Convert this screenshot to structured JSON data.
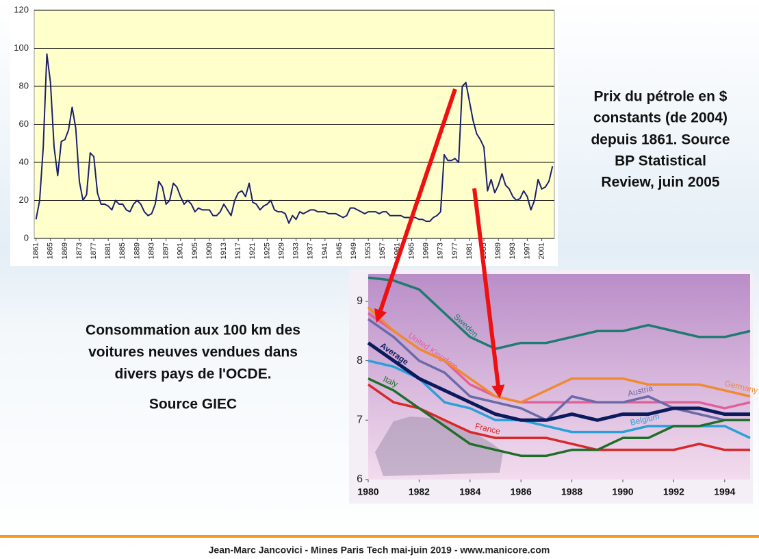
{
  "chart_data": [
    {
      "type": "line",
      "x": [
        1861,
        1862,
        1863,
        1864,
        1865,
        1866,
        1867,
        1868,
        1869,
        1870,
        1871,
        1872,
        1873,
        1874,
        1875,
        1876,
        1877,
        1878,
        1879,
        1880,
        1881,
        1882,
        1883,
        1884,
        1885,
        1886,
        1887,
        1888,
        1889,
        1890,
        1891,
        1892,
        1893,
        1894,
        1895,
        1896,
        1897,
        1898,
        1899,
        1900,
        1901,
        1902,
        1903,
        1904,
        1905,
        1906,
        1907,
        1908,
        1909,
        1910,
        1911,
        1912,
        1913,
        1914,
        1915,
        1916,
        1917,
        1918,
        1919,
        1920,
        1921,
        1922,
        1923,
        1924,
        1925,
        1926,
        1927,
        1928,
        1929,
        1930,
        1931,
        1932,
        1933,
        1934,
        1935,
        1936,
        1937,
        1938,
        1939,
        1940,
        1941,
        1942,
        1943,
        1944,
        1945,
        1946,
        1947,
        1948,
        1949,
        1950,
        1951,
        1952,
        1953,
        1954,
        1955,
        1956,
        1957,
        1958,
        1959,
        1960,
        1961,
        1962,
        1963,
        1964,
        1965,
        1966,
        1967,
        1968,
        1969,
        1970,
        1971,
        1972,
        1973,
        1974,
        1975,
        1976,
        1977,
        1978,
        1979,
        1980,
        1981,
        1982,
        1983,
        1984,
        1985,
        1986,
        1987,
        1988,
        1989,
        1990,
        1991,
        1992,
        1993,
        1994,
        1995,
        1996,
        1997,
        1998,
        1999,
        2000,
        2001,
        2002,
        2003,
        2004
      ],
      "values": [
        10,
        20,
        48,
        97,
        82,
        48,
        33,
        51,
        52,
        57,
        69,
        58,
        30,
        20,
        23,
        45,
        43,
        24,
        18,
        18,
        17,
        15,
        20,
        18,
        18,
        15,
        14,
        18,
        20,
        18,
        14,
        12,
        13,
        18,
        30,
        27,
        18,
        20,
        29,
        27,
        22,
        18,
        20,
        18,
        14,
        16,
        15,
        15,
        15,
        12,
        12,
        14,
        18,
        15,
        12,
        20,
        24,
        25,
        22,
        29,
        19,
        18,
        15,
        17,
        18,
        20,
        15,
        14,
        14,
        13,
        8,
        12,
        10,
        14,
        13,
        14,
        15,
        15,
        14,
        14,
        14,
        13,
        13,
        13,
        12,
        11,
        12,
        16,
        16,
        15,
        14,
        13,
        14,
        14,
        14,
        13,
        14,
        14,
        12,
        12,
        12,
        12,
        11,
        11,
        11,
        11,
        10,
        10,
        9,
        9,
        11,
        12,
        14,
        44,
        41,
        41,
        42,
        40,
        80,
        82,
        72,
        62,
        55,
        52,
        48,
        25,
        31,
        24,
        28,
        34,
        28,
        26,
        22,
        20,
        21,
        25,
        22,
        15,
        20,
        31,
        26,
        27,
        30,
        38
      ],
      "color": "#1a1f6e",
      "xlim": [
        1860.5,
        2004.5
      ],
      "xticks": [
        1861,
        1865,
        1869,
        1873,
        1877,
        1881,
        1885,
        1889,
        1893,
        1897,
        1901,
        1905,
        1909,
        1913,
        1917,
        1921,
        1925,
        1929,
        1933,
        1937,
        1941,
        1945,
        1949,
        1953,
        1957,
        1961,
        1965,
        1969,
        1973,
        1977,
        1981,
        1985,
        1989,
        1993,
        1997,
        2001
      ],
      "ylim": [
        0,
        120
      ],
      "yticks": [
        0,
        20,
        40,
        60,
        80,
        100,
        120
      ],
      "grid": true
    },
    {
      "type": "line",
      "x": [
        1980,
        1981,
        1982,
        1983,
        1984,
        1985,
        1986,
        1987,
        1988,
        1989,
        1990,
        1991,
        1992,
        1993,
        1994,
        1995
      ],
      "series": [
        {
          "name": "Sweden",
          "color": "#1f7a70",
          "values": [
            9.4,
            9.35,
            9.2,
            8.8,
            8.4,
            8.2,
            8.3,
            8.3,
            8.4,
            8.5,
            8.5,
            8.6,
            8.5,
            8.4,
            8.4,
            8.5
          ]
        },
        {
          "name": "United Kingdom",
          "color": "#e0609a",
          "values": [
            8.8,
            8.5,
            8.2,
            8.0,
            7.6,
            7.4,
            7.3,
            7.3,
            7.3,
            7.3,
            7.3,
            7.3,
            7.3,
            7.3,
            7.2,
            7.3
          ]
        },
        {
          "name": "Germany",
          "color": "#f08a30",
          "values": [
            8.9,
            8.5,
            8.2,
            8.0,
            7.7,
            7.4,
            7.3,
            7.5,
            7.7,
            7.7,
            7.7,
            7.6,
            7.6,
            7.6,
            7.5,
            7.4
          ]
        },
        {
          "name": "Austria",
          "color": "#6a6aa8",
          "values": [
            8.7,
            8.4,
            8.0,
            7.8,
            7.4,
            7.3,
            7.2,
            7.0,
            7.4,
            7.3,
            7.3,
            7.4,
            7.2,
            7.1,
            7.0,
            7.0
          ]
        },
        {
          "name": "Belgium",
          "color": "#28a0d8",
          "values": [
            8.0,
            7.9,
            7.7,
            7.3,
            7.2,
            7.0,
            7.0,
            6.9,
            6.8,
            6.8,
            6.8,
            6.9,
            6.9,
            6.9,
            6.9,
            6.7
          ]
        },
        {
          "name": "France",
          "color": "#d82828",
          "values": [
            7.6,
            7.3,
            7.2,
            7.0,
            6.8,
            6.7,
            6.7,
            6.7,
            6.6,
            6.5,
            6.5,
            6.5,
            6.5,
            6.6,
            6.5,
            6.5
          ]
        },
        {
          "name": "Italy",
          "color": "#1e6e2a",
          "values": [
            7.7,
            7.5,
            7.2,
            6.9,
            6.6,
            6.5,
            6.4,
            6.4,
            6.5,
            6.5,
            6.7,
            6.7,
            6.9,
            6.9,
            7.0,
            7.0
          ]
        },
        {
          "name": "Average",
          "color": "#0a1a5c",
          "values": [
            8.3,
            8.0,
            7.7,
            7.5,
            7.3,
            7.1,
            7.0,
            7.0,
            7.1,
            7.0,
            7.1,
            7.1,
            7.2,
            7.2,
            7.1,
            7.1
          ]
        }
      ],
      "xlim": [
        1980,
        1995
      ],
      "xticks": [
        1980,
        1982,
        1984,
        1986,
        1988,
        1990,
        1992,
        1994
      ],
      "ylim": [
        6,
        9.46
      ],
      "yticks": [
        6,
        7,
        8,
        9
      ],
      "grid": false
    }
  ],
  "slide": {
    "oil_caption": [
      "Prix du pétrole en $",
      "constants (de 2004)",
      "depuis 1861. Source",
      "BP Statistical",
      "Review, juin 2005"
    ],
    "consumption_caption": [
      "Consommation aux 100 km des",
      "voitures neuves vendues dans",
      "divers pays de l'OCDE."
    ],
    "consumption_source": "Source GIEC",
    "footer": "Jean-Marc Jancovici - Mines Paris Tech mai-juin 2019 - www.manicore.com"
  }
}
